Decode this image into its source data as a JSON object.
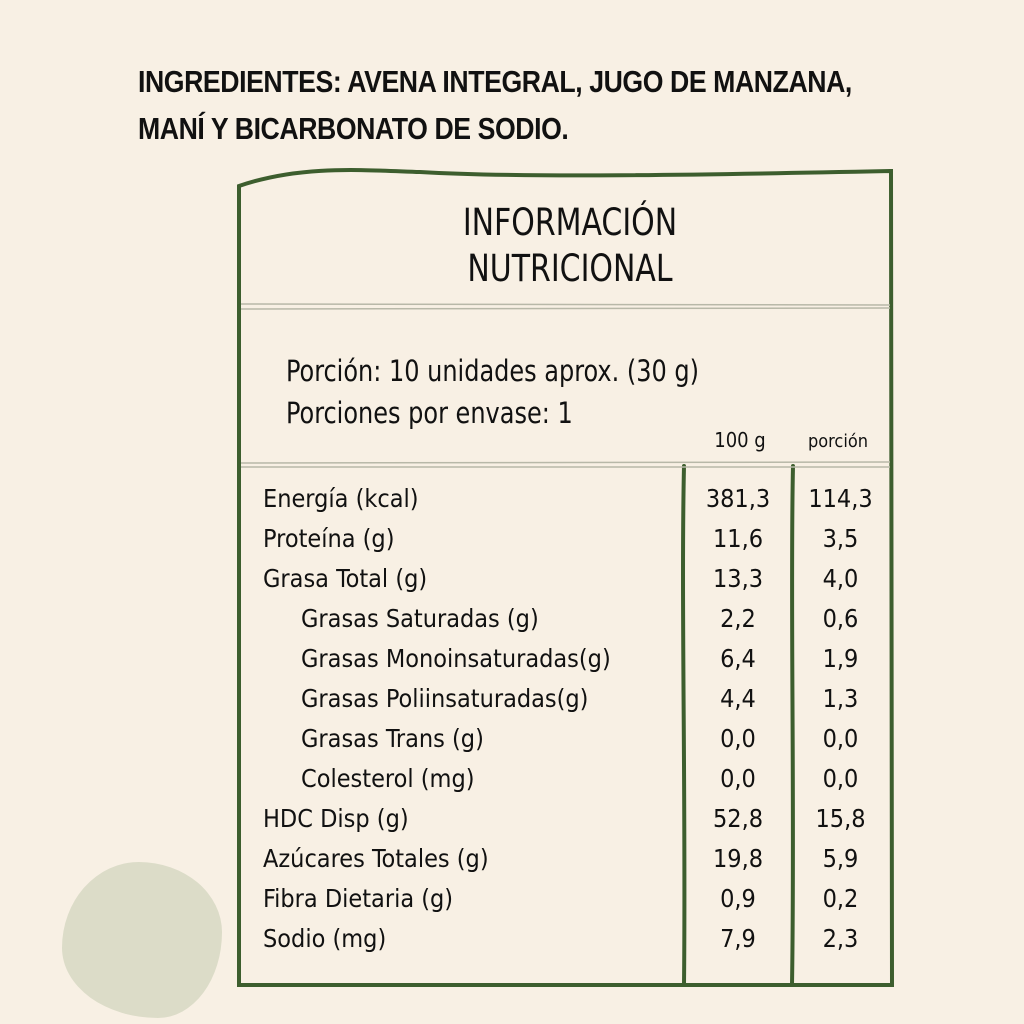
{
  "ingredients": {
    "line1": "INGREDIENTES: AVENA INTEGRAL, JUGO DE MANZANA,",
    "line2": "MANÍ Y BICARBONATO DE SODIO."
  },
  "colors": {
    "background": "#f8f0e4",
    "frame": "#3d5e2e",
    "blob": "#dcdcc8"
  },
  "label": {
    "title_line1": "INFORMACIÓN",
    "title_line2": "NUTRICIONAL",
    "portion": "Porción: 10 unidades aprox. (30 g)",
    "portions_per_package": "Porciones por envase: 1",
    "col_100g": "100 g",
    "col_portion": "porción",
    "rows": [
      {
        "name": "Energía (kcal)",
        "per100": "381,3",
        "portion": "114,3"
      },
      {
        "name": "Proteína (g)",
        "per100": "11,6",
        "portion": "3,5"
      },
      {
        "name": "Grasa Total (g)",
        "per100": "13,3",
        "portion": "4,0"
      },
      {
        "name": "Grasas Saturadas (g)",
        "per100": "2,2",
        "portion": "0,6"
      },
      {
        "name": "Grasas Monoinsaturadas(g)",
        "per100": "6,4",
        "portion": "1,9"
      },
      {
        "name": "Grasas Poliinsaturadas(g)",
        "per100": "4,4",
        "portion": "1,3"
      },
      {
        "name": "Grasas Trans (g)",
        "per100": "0,0",
        "portion": "0,0"
      },
      {
        "name": "Colesterol (mg)",
        "per100": "0,0",
        "portion": "0,0"
      },
      {
        "name": "HDC Disp (g)",
        "per100": "52,8",
        "portion": "15,8"
      },
      {
        "name": "Azúcares Totales (g)",
        "per100": "19,8",
        "portion": "5,9"
      },
      {
        "name": "Fibra Dietaria (g)",
        "per100": "0,9",
        "portion": "0,2"
      },
      {
        "name": "Sodio (mg)",
        "per100": "7,9",
        "portion": "2,3"
      }
    ]
  }
}
